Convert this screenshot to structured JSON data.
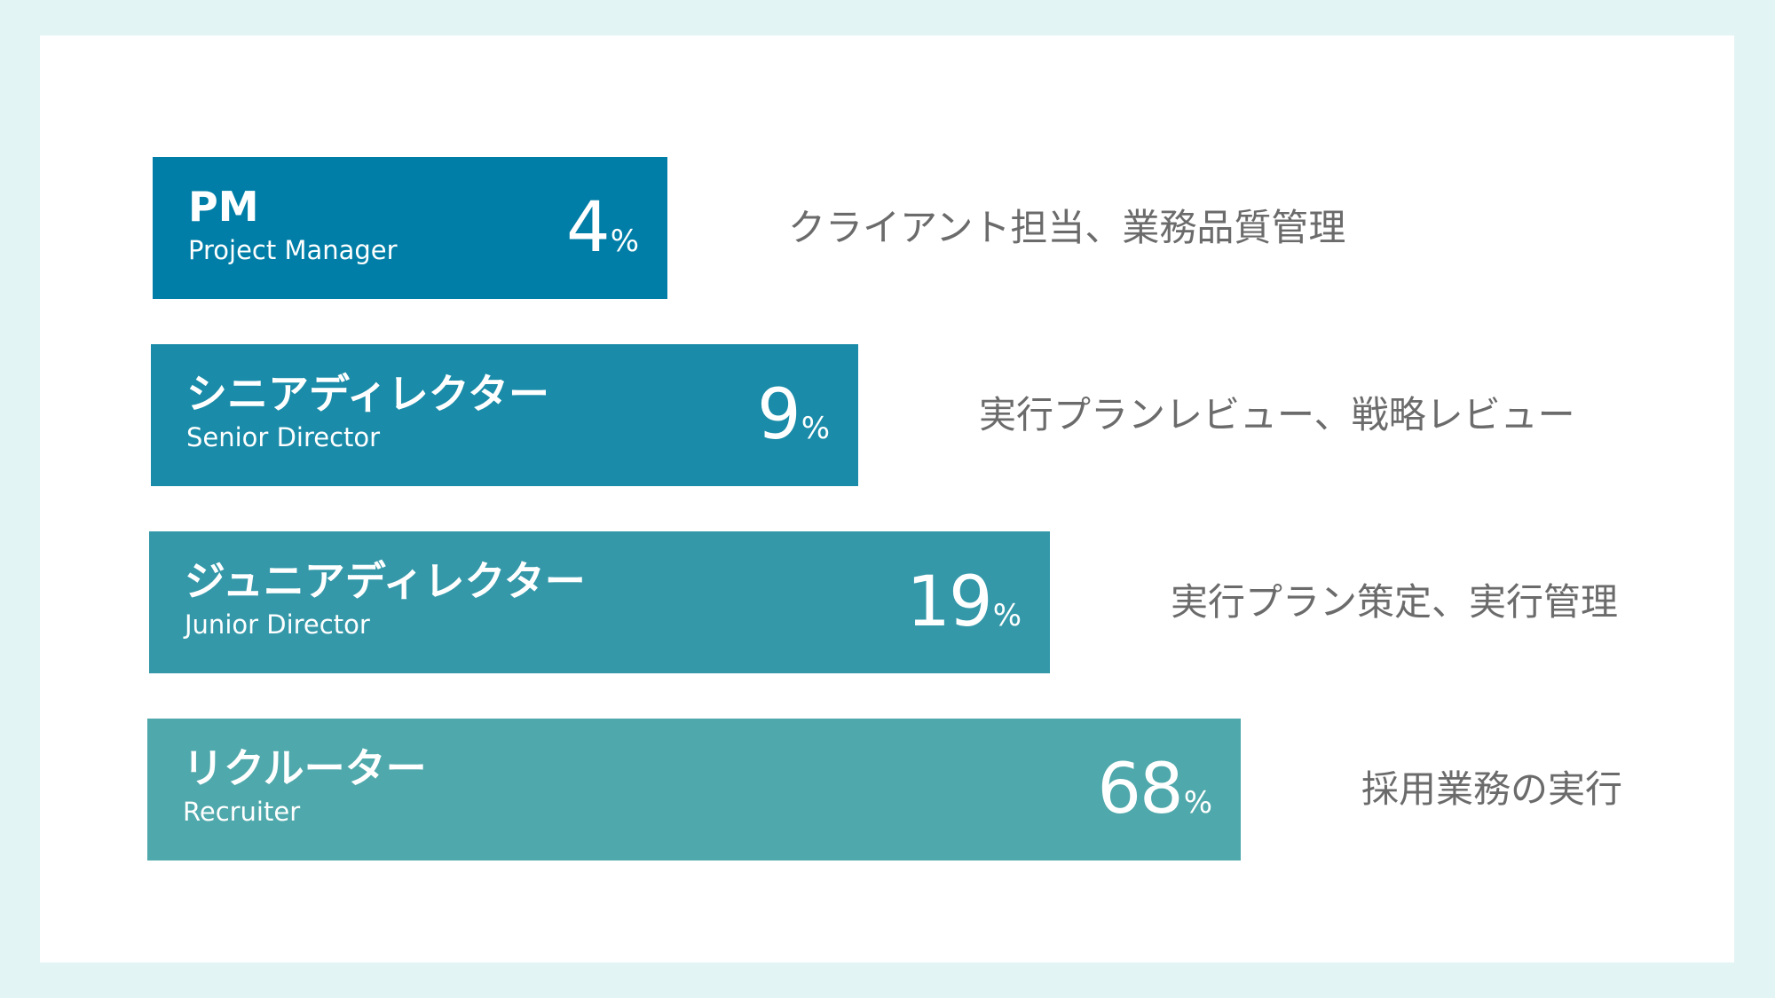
{
  "chart_data": {
    "type": "bar",
    "orientation": "horizontal",
    "unit": "%",
    "categories": [
      {
        "name_ja": "PM",
        "name_en": "Project Manager",
        "value": 4,
        "description": "クライアント担当、業務品質管理",
        "color": "#007ea7"
      },
      {
        "name_ja": "シニアディレクター",
        "name_en": "Senior Director",
        "value": 9,
        "description": "実行プランレビュー、戦略レビュー",
        "color": "#1a8ba8"
      },
      {
        "name_ja": "ジュニアディレクター",
        "name_en": "Junior Director",
        "value": 19,
        "description": "実行プラン策定、実行管理",
        "color": "#3498a9"
      },
      {
        "name_ja": "リクルーター",
        "name_en": "Recruiter",
        "value": 68,
        "description": "採用業務の実行",
        "color": "#4fa8ab"
      }
    ]
  },
  "colors": {
    "background": "#e3f4f4",
    "card": "#ffffff",
    "bar_text": "#ffffff",
    "description_text": "#6b6b6b"
  }
}
